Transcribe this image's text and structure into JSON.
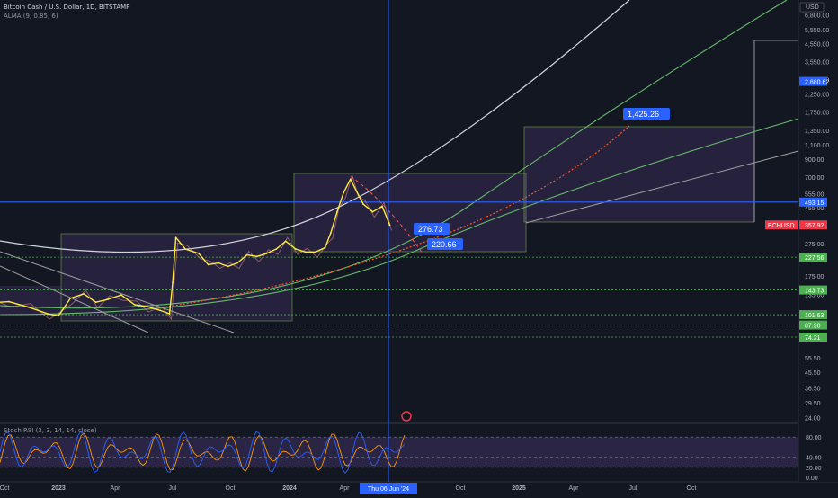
{
  "header": {
    "symbol_line": "Bitcoin Cash / U.S. Dollar, 1D, BITSTAMP",
    "indicator": "ALMA (9, 0.85, 6)",
    "oscillator": "Stoch RSI (3, 3, 14, 14, close)"
  },
  "currency": "USD",
  "ticker_label": "BCHUSD",
  "cursor_date": "Thu 06 Jun '24",
  "chart_data": [
    {
      "type": "line",
      "title": "Bitcoin Cash / U.S. Dollar, 1D, BITSTAMP",
      "scale": "log",
      "x_ticks": [
        "Oct",
        "2023",
        "Apr",
        "Jul",
        "Oct",
        "2024",
        "Apr",
        "Jun",
        "Oct",
        "2025",
        "Apr",
        "Jul",
        "Oct"
      ],
      "y_ticks": [
        6800,
        5550,
        4550,
        3550,
        2750,
        2250,
        1750,
        1350,
        1100,
        900,
        700,
        555,
        455,
        355,
        275,
        175,
        135,
        105,
        55.5,
        45.5,
        36.5,
        29.5,
        24
      ],
      "y_tick_labels": [
        "6,800.00",
        "5,550.00",
        "4,550.00",
        "3,550.00",
        "2,750.00",
        "2,250.00",
        "1,750.00",
        "1,350.00",
        "1,100.00",
        "900.00",
        "700.00",
        "555.00",
        "455.00",
        "355.00",
        "275.00",
        "175.00",
        "135.00",
        "105.00",
        "55.50",
        "45.50",
        "36.50",
        "29.50",
        "24.00"
      ],
      "price_labels": [
        {
          "value": 2680.62,
          "text": "2,680.62",
          "color": "#2962ff"
        },
        {
          "value": 493.15,
          "text": "493.15",
          "color": "#2962ff"
        },
        {
          "value": 357.92,
          "text": "357.92",
          "color": "#f23645"
        },
        {
          "value": 227.56,
          "text": "227.56",
          "color": "#4caf50"
        },
        {
          "value": 143.73,
          "text": "143.73",
          "color": "#4caf50"
        },
        {
          "value": 101.63,
          "text": "101.63",
          "color": "#4caf50"
        },
        {
          "value": 87.9,
          "text": "87.90",
          "color": "#4caf50"
        },
        {
          "value": 74.21,
          "text": "74.21",
          "color": "#4caf50"
        }
      ],
      "annotations": [
        {
          "value": 1425.26,
          "text": "1,425.26"
        },
        {
          "value": 276.73,
          "text": "276.73"
        },
        {
          "value": 220.66,
          "text": "220.66"
        }
      ],
      "series": [
        {
          "name": "BCHUSD",
          "color": "#ffeb3b",
          "x": [
            "2022-09-15",
            "2022-10-15",
            "2022-11-15",
            "2022-12-15",
            "2023-01-01",
            "2023-01-20",
            "2023-02-10",
            "2023-03-01",
            "2023-03-20",
            "2023-04-10",
            "2023-05-01",
            "2023-05-20",
            "2023-06-10",
            "2023-06-25",
            "2023-06-30",
            "2023-07-05",
            "2023-07-20",
            "2023-08-10",
            "2023-08-25",
            "2023-09-10",
            "2023-09-25",
            "2023-10-10",
            "2023-10-25",
            "2023-11-10",
            "2023-11-25",
            "2023-12-10",
            "2023-12-25",
            "2024-01-10",
            "2024-01-25",
            "2024-02-10",
            "2024-02-25",
            "2024-03-05",
            "2024-03-15",
            "2024-03-25",
            "2024-04-05",
            "2024-04-15",
            "2024-04-25",
            "2024-05-10",
            "2024-05-25",
            "2024-06-06"
          ],
          "y": [
            120,
            122,
            113,
            103,
            100,
            128,
            136,
            121,
            126,
            134,
            117,
            114,
            108,
            103,
            160,
            300,
            255,
            240,
            205,
            210,
            200,
            210,
            235,
            230,
            240,
            255,
            285,
            255,
            245,
            245,
            260,
            320,
            430,
            560,
            680,
            570,
            480,
            430,
            465,
            357
          ]
        }
      ]
    },
    {
      "type": "line",
      "title": "Stoch RSI (3, 3, 14, 14, close)",
      "ylim": [
        0,
        100
      ],
      "y_ticks": [
        80,
        40,
        20,
        0
      ],
      "y_tick_labels": [
        "80.00",
        "40.00",
        "20.00",
        "0.00"
      ],
      "bands": [
        20,
        80
      ]
    }
  ]
}
